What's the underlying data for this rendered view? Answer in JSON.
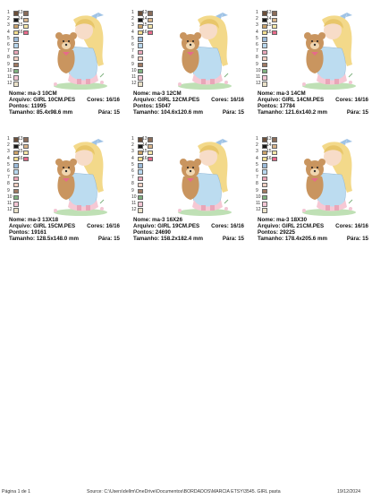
{
  "palette": [
    "#6b4f3a",
    "#1a1a1a",
    "#c9a16a",
    "#f2dd8f",
    "#9bbad8",
    "#b7d7ee",
    "#e9a6b8",
    "#f6d2c4",
    "#a07a62",
    "#7fb27f",
    "#f3c6d4",
    "#eae1c8",
    "#8a6d5a",
    "#d8b48a",
    "#f5e6a8",
    "#e66a8a"
  ],
  "swatch_rows": [
    {
      "a": "1",
      "b": "13"
    },
    {
      "a": "2",
      "b": "14"
    },
    {
      "a": "3",
      "b": "15"
    },
    {
      "a": "4",
      "b": "16"
    },
    {
      "a": "5",
      "b": ""
    },
    {
      "a": "6",
      "b": ""
    },
    {
      "a": "7",
      "b": ""
    },
    {
      "a": "8",
      "b": ""
    },
    {
      "a": "9",
      "b": ""
    },
    {
      "a": "10",
      "b": ""
    },
    {
      "a": "11",
      "b": ""
    },
    {
      "a": "12",
      "b": ""
    }
  ],
  "labels": {
    "nome": "Nome:",
    "arquivo": "Arquivo:",
    "pontos": "Pontos:",
    "tamanho": "Tamanho:",
    "cores": "Cores:",
    "parar": "Pára:"
  },
  "cards": [
    {
      "nome": "ma-3 10CM",
      "arquivo": "GIRL 10CM.PES",
      "pontos": "11995",
      "tamanho": "85.4x98.6 mm",
      "cores": "16/16",
      "parar": "15"
    },
    {
      "nome": "ma-3 12CM",
      "arquivo": "GIRL 12CM.PES",
      "pontos": "15047",
      "tamanho": "104.6x120.6 mm",
      "cores": "16/16",
      "parar": "15"
    },
    {
      "nome": "ma-3 14CM",
      "arquivo": "GIRL 14CM.PES",
      "pontos": "17784",
      "tamanho": "121.6x140.2 mm",
      "cores": "16/16",
      "parar": "15"
    },
    {
      "nome": "ma-3 13X18",
      "arquivo": "GIRL 15CM.PES",
      "pontos": "19161",
      "tamanho": "128.5x148.0 mm",
      "cores": "16/16",
      "parar": "15"
    },
    {
      "nome": "ma-3 16X26",
      "arquivo": "GIRL 19CM.PES",
      "pontos": "24690",
      "tamanho": "158.2x182.4 mm",
      "cores": "16/16",
      "parar": "15"
    },
    {
      "nome": "ma-3 18X30",
      "arquivo": "GIRL 21CM.PES",
      "pontos": "29225",
      "tamanho": "178.4x205.6 mm",
      "cores": "16/16",
      "parar": "15"
    }
  ],
  "footer": {
    "page": "Página 1 de 1",
    "source": "Source: C:\\Users\\dellm\\OneDrive\\Documentos\\BORDADOS\\MARCIA ETSY\\3545. GIRL pasta",
    "date": "19/12/2024"
  }
}
